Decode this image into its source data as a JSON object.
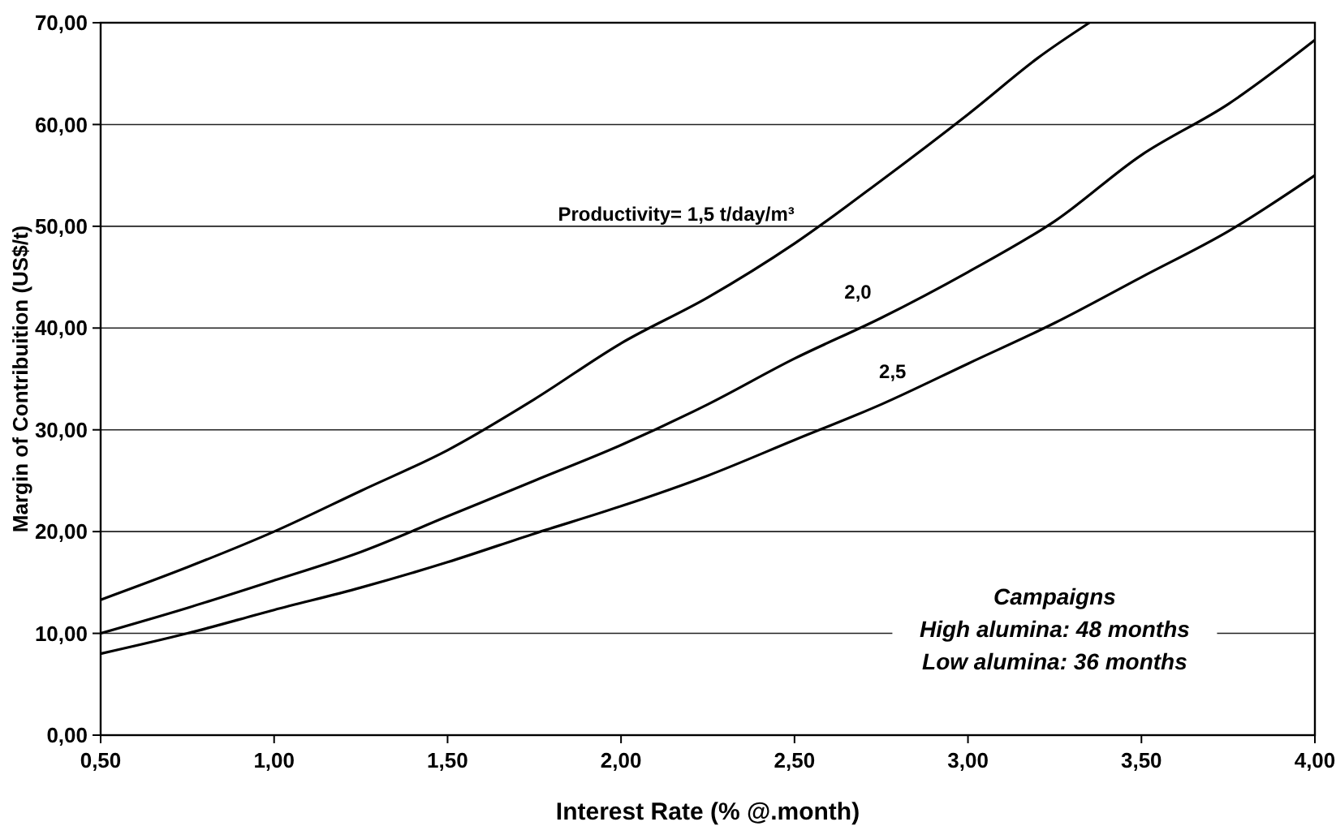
{
  "chart_data": {
    "type": "line",
    "xlabel": "Interest Rate (% @.month)",
    "ylabel": "Margin of Contribuition (US$/t)",
    "xlim": [
      0.5,
      4
    ],
    "ylim": [
      0,
      70
    ],
    "xticks": [
      {
        "value": 0.5,
        "label": "0,50"
      },
      {
        "value": 1,
        "label": "1,00"
      },
      {
        "value": 1.5,
        "label": "1,50"
      },
      {
        "value": 2,
        "label": "2,00"
      },
      {
        "value": 2.5,
        "label": "2,50"
      },
      {
        "value": 3,
        "label": "3,00"
      },
      {
        "value": 3.5,
        "label": "3,50"
      },
      {
        "value": 4,
        "label": "4,00"
      }
    ],
    "yticks": [
      {
        "value": 0,
        "label": "0,00"
      },
      {
        "value": 10,
        "label": "10,00"
      },
      {
        "value": 20,
        "label": "20,00"
      },
      {
        "value": 30,
        "label": "30,00"
      },
      {
        "value": 40,
        "label": "40,00"
      },
      {
        "value": 50,
        "label": "50,00"
      },
      {
        "value": 60,
        "label": "60,00"
      },
      {
        "value": 70,
        "label": "70,00"
      }
    ],
    "grid": "y",
    "marker": "none",
    "line_style": "solid",
    "series": [
      {
        "name": "Productivity= 1,5 t/day/m³",
        "color": "#000000",
        "x": [
          0.5,
          0.75,
          1,
          1.25,
          1.5,
          1.75,
          2,
          2.25,
          2.5,
          2.75,
          3,
          3.2,
          3.35
        ],
        "values": [
          13.3,
          16.5,
          20,
          24,
          28,
          33,
          38.5,
          43,
          48.3,
          54.5,
          61,
          66.5,
          70
        ]
      },
      {
        "name": "2,0",
        "color": "#000000",
        "x": [
          0.5,
          0.75,
          1,
          1.25,
          1.5,
          1.75,
          2,
          2.25,
          2.5,
          2.75,
          3,
          3.25,
          3.5,
          3.75,
          4
        ],
        "values": [
          10,
          12.5,
          15.2,
          18,
          21.5,
          25,
          28.5,
          32.5,
          37,
          41,
          45.5,
          50.5,
          57,
          62,
          68.3
        ]
      },
      {
        "name": "2,5",
        "color": "#000000",
        "x": [
          0.5,
          0.75,
          1,
          1.25,
          1.5,
          1.75,
          2,
          2.25,
          2.5,
          2.75,
          3,
          3.25,
          3.5,
          3.75,
          4
        ],
        "values": [
          8,
          10,
          12.3,
          14.5,
          17,
          19.8,
          22.5,
          25.5,
          29,
          32.5,
          36.5,
          40.5,
          45,
          49.5,
          55
        ]
      }
    ],
    "annotations": [
      "Campaigns",
      "High alumina: 48 months",
      "Low alumina: 36 months"
    ]
  }
}
